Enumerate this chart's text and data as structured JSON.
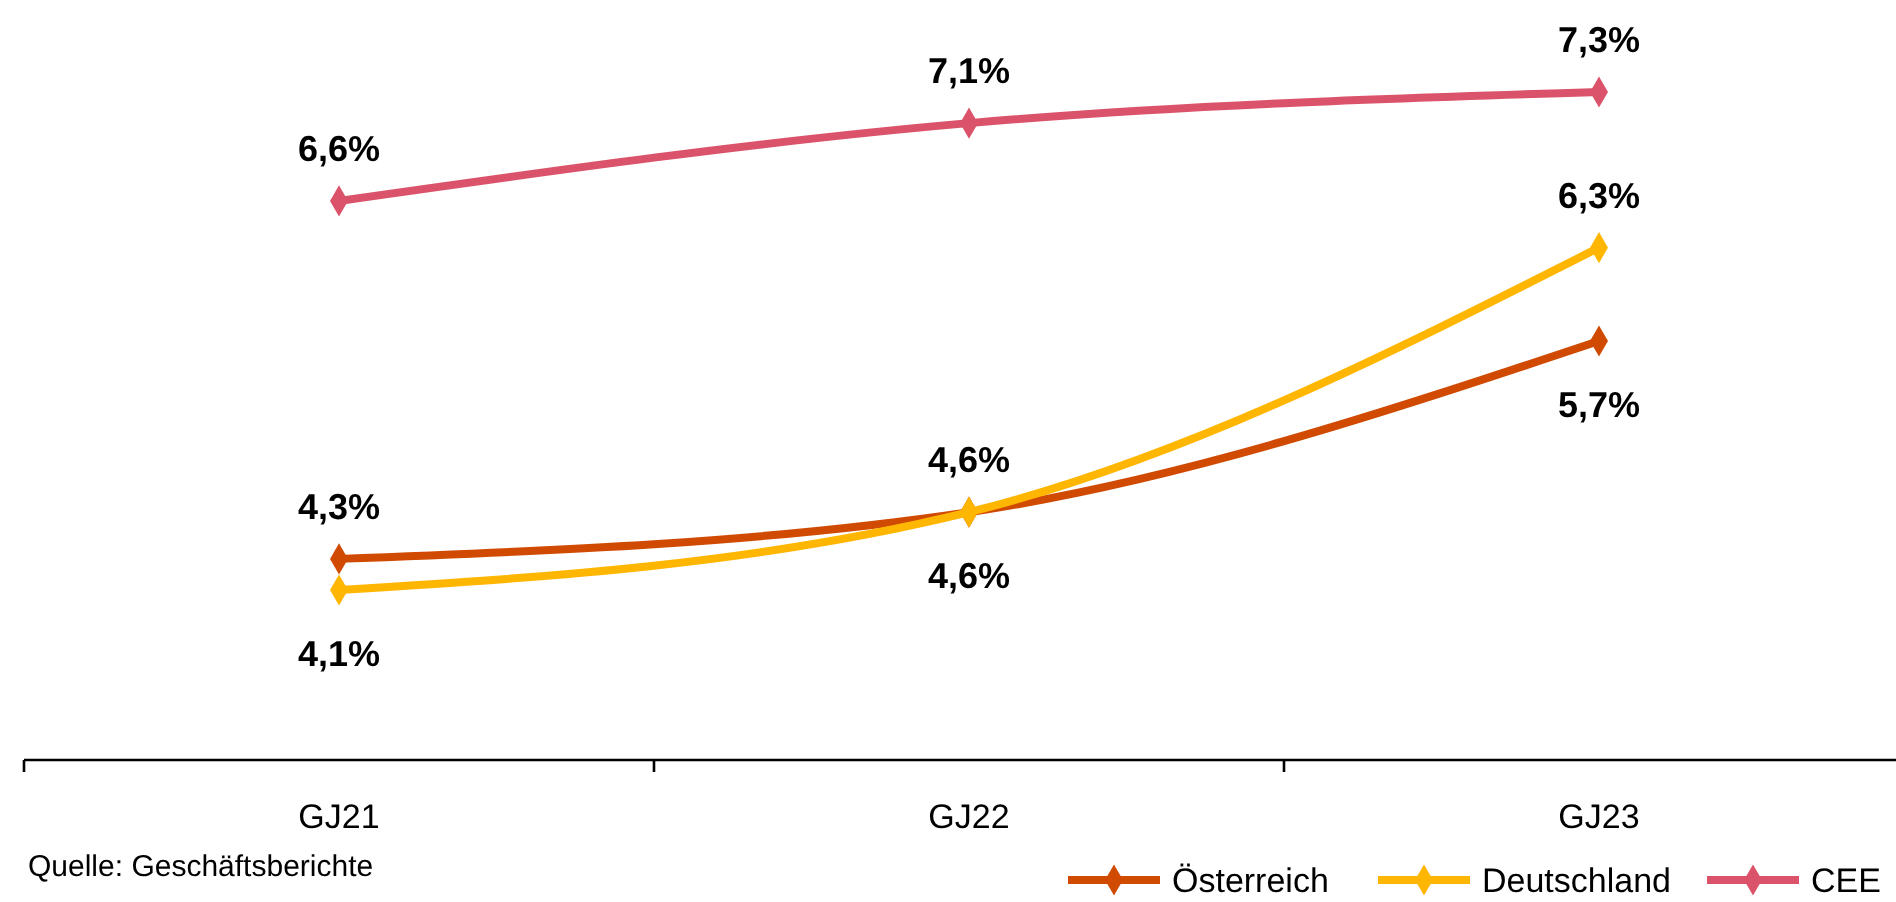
{
  "chart_data": {
    "type": "line",
    "categories": [
      "GJ21",
      "GJ22",
      "GJ23"
    ],
    "series": [
      {
        "name": "Österreich",
        "color": "#d04a02",
        "values": [
          4.3,
          4.6,
          5.7
        ],
        "value_labels": [
          "4,3%",
          "4,6%",
          "5,7%"
        ]
      },
      {
        "name": "Deutschland",
        "color": "#ffb600",
        "values": [
          4.1,
          4.6,
          6.3
        ],
        "value_labels": [
          "4,1%",
          "4,6%",
          "6,3%"
        ]
      },
      {
        "name": "CEE",
        "color": "#db536a",
        "values": [
          6.6,
          7.1,
          7.3
        ],
        "value_labels": [
          "6,6%",
          "7,1%",
          "7,3%"
        ]
      }
    ],
    "marker": "diamond",
    "legend": "bottom right",
    "annotations": [
      "Quelle: Geschäftsberichte"
    ]
  }
}
